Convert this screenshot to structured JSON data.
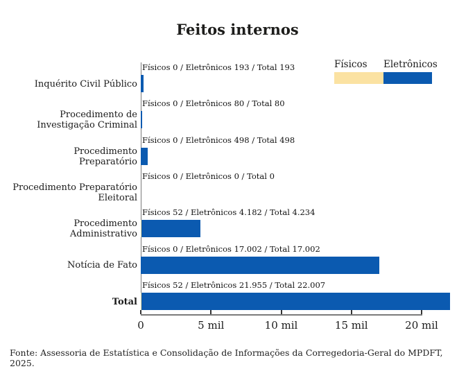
{
  "chart": {
    "title": "Feitos internos",
    "source": "Fonte: Assessoria de Estatística e Consolidação de Informações da Corregedoria-Geral do MPDFT, 2025."
  },
  "rows": [
    {
      "lines": [
        "Inquérito Civil Público"
      ],
      "annotation": "Físicos 0 / Eletrônicos 193 / Total 193"
    },
    {
      "lines": [
        "Procedimento de",
        "Investigação Criminal"
      ],
      "annotation": "Físicos 0 / Eletrônicos 80 / Total 80"
    },
    {
      "lines": [
        "Procedimento",
        "Preparatório"
      ],
      "annotation": "Físicos 0 / Eletrônicos 498 / Total 498"
    },
    {
      "lines": [
        "Procedimento Preparatório",
        "Eleitoral"
      ],
      "annotation": "Físicos 0 / Eletrônicos 0 / Total 0"
    },
    {
      "lines": [
        "Procedimento",
        "Administrativo"
      ],
      "annotation": "Físicos 52 / Eletrônicos 4.182 / Total 4.234"
    },
    {
      "lines": [
        "Notícia de Fato"
      ],
      "annotation": "Físicos 0 / Eletrônicos 17.002 / Total 17.002"
    },
    {
      "lines": [
        "Total"
      ],
      "annotation": "Físicos 52 / Eletrônicos 21.955 / Total 22.007"
    }
  ],
  "chart_data": {
    "type": "bar",
    "orientation": "horizontal",
    "stacked": true,
    "title": "Feitos internos",
    "categories": [
      "Inquérito Civil Público",
      "Procedimento de Investigação Criminal",
      "Procedimento Preparatório",
      "Procedimento Preparatório Eleitoral",
      "Procedimento Administrativo",
      "Notícia de Fato",
      "Total"
    ],
    "series": [
      {
        "name": "Físicos",
        "color": "#fbe2a2",
        "values": [
          0,
          0,
          0,
          0,
          52,
          0,
          52
        ]
      },
      {
        "name": "Eletrônicos",
        "color": "#0b5ab0",
        "values": [
          193,
          80,
          498,
          0,
          4182,
          17002,
          21955
        ]
      }
    ],
    "totals": [
      193,
      80,
      498,
      0,
      4234,
      17002,
      22007
    ],
    "xlim": [
      0,
      20000
    ],
    "x_ticks": [
      {
        "value": 0,
        "label": "0"
      },
      {
        "value": 5000,
        "label": "5 mil"
      },
      {
        "value": 10000,
        "label": "10 mil"
      },
      {
        "value": 15000,
        "label": "15 mil"
      },
      {
        "value": 20000,
        "label": "20 mil"
      }
    ],
    "legend_position": "top-right",
    "grid": false,
    "source": "Fonte: Assessoria de Estatística e Consolidação de Informações da Corregedoria-Geral do MPDFT, 2025."
  }
}
